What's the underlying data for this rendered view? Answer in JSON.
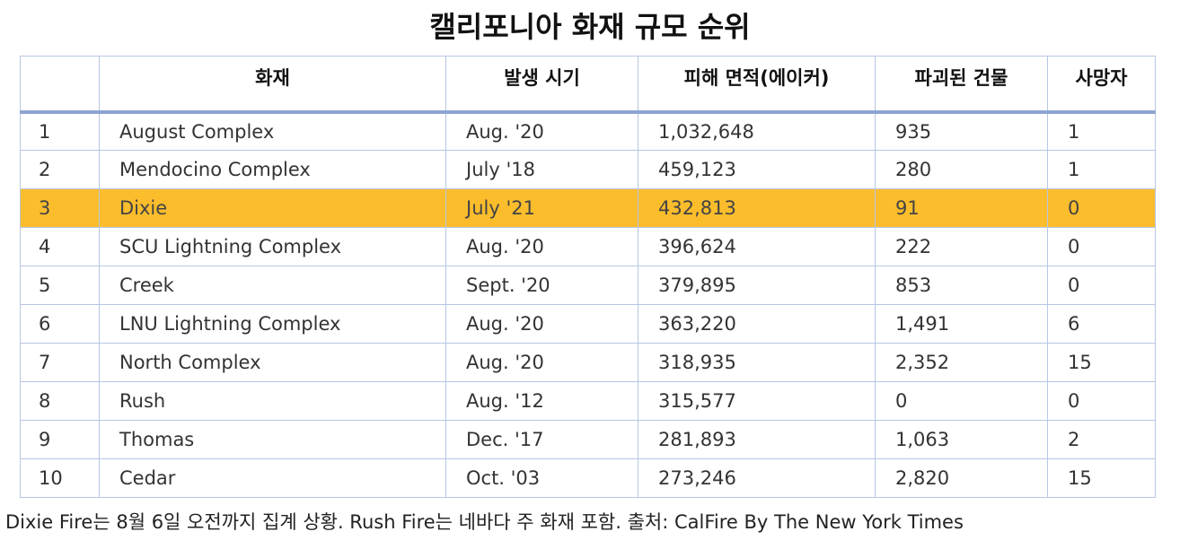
{
  "title": "캘리포니아 화재 규모 순위",
  "highlight_color": "#fbbd2c",
  "border_color": "#b7c6e3",
  "columns": [
    "",
    "화재",
    "발생 시기",
    "피해 면적(에이커)",
    "파괴된 건물",
    "사망자"
  ],
  "rows": [
    {
      "rank": "1",
      "fire": "August Complex",
      "date": "Aug. '20",
      "acres": "1,032,648",
      "structures": "935",
      "deaths": "1",
      "highlight": false
    },
    {
      "rank": "2",
      "fire": "Mendocino Complex",
      "date": "July '18",
      "acres": "459,123",
      "structures": "280",
      "deaths": "1",
      "highlight": false
    },
    {
      "rank": "3",
      "fire": "Dixie",
      "date": "July '21",
      "acres": "432,813",
      "structures": "91",
      "deaths": "0",
      "highlight": true
    },
    {
      "rank": "4",
      "fire": "SCU Lightning Complex",
      "date": "Aug. '20",
      "acres": "396,624",
      "structures": "222",
      "deaths": "0",
      "highlight": false
    },
    {
      "rank": "5",
      "fire": "Creek",
      "date": "Sept. '20",
      "acres": "379,895",
      "structures": "853",
      "deaths": "0",
      "highlight": false
    },
    {
      "rank": "6",
      "fire": "LNU Lightning Complex",
      "date": "Aug. '20",
      "acres": "363,220",
      "structures": "1,491",
      "deaths": "6",
      "highlight": false
    },
    {
      "rank": "7",
      "fire": "North Complex",
      "date": "Aug. '20",
      "acres": "318,935",
      "structures": "2,352",
      "deaths": "15",
      "highlight": false
    },
    {
      "rank": "8",
      "fire": "Rush",
      "date": "Aug. '12",
      "acres": "315,577",
      "structures": "0",
      "deaths": "0",
      "highlight": false
    },
    {
      "rank": "9",
      "fire": "Thomas",
      "date": "Dec. '17",
      "acres": "281,893",
      "structures": "1,063",
      "deaths": "2",
      "highlight": false
    },
    {
      "rank": "10",
      "fire": "Cedar",
      "date": "Oct. '03",
      "acres": "273,246",
      "structures": "2,820",
      "deaths": "15",
      "highlight": false
    }
  ],
  "footnote": "Dixie Fire는 8월 6일 오전까지 집계 상황. Rush Fire는 네바다 주 화재 포함. 출처: CalFire By The New York Times"
}
